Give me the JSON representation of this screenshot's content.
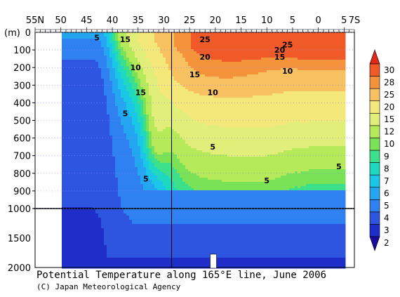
{
  "chart_data": {
    "type": "heatmap",
    "title": "Potential Temperature along 165°E line, June 2006",
    "credit": "(C) Japan Meteorological Agency",
    "ylabel": "(m)",
    "x_ticks": [
      {
        "label": "55N",
        "lat": 55
      },
      {
        "label": "50",
        "lat": 50
      },
      {
        "label": "45",
        "lat": 45
      },
      {
        "label": "40",
        "lat": 40
      },
      {
        "label": "35",
        "lat": 35
      },
      {
        "label": "30",
        "lat": 30
      },
      {
        "label": "25",
        "lat": 25
      },
      {
        "label": "20",
        "lat": 20
      },
      {
        "label": "15",
        "lat": 15
      },
      {
        "label": "10",
        "lat": 10
      },
      {
        "label": "5",
        "lat": 5
      },
      {
        "label": "0",
        "lat": 0
      },
      {
        "label": "5",
        "lat": -5
      },
      {
        "label": "7S",
        "lat": -7
      }
    ],
    "x_range": [
      55,
      -7
    ],
    "y_ticks_upper": [
      "0",
      "100",
      "200",
      "300",
      "400",
      "500",
      "600",
      "700",
      "800",
      "900",
      "1000"
    ],
    "y_ticks_lower": [
      "1500",
      "2000"
    ],
    "depth_break": 1000,
    "y_range": [
      0,
      2000
    ],
    "colorbar": {
      "labels": [
        "2",
        "3",
        "4",
        "5",
        "6",
        "7",
        "8",
        "9",
        "10",
        "12",
        "15",
        "20",
        "25",
        "28",
        "30"
      ],
      "colors": [
        "#1a0a9e",
        "#1f2ec8",
        "#2e55e0",
        "#2f80f0",
        "#25a6f0",
        "#1bc7e6",
        "#1ed8c0",
        "#3ce08a",
        "#7ae256",
        "#b6ea5a",
        "#e2ee7a",
        "#f5e87a",
        "#f7c060",
        "#f5923c",
        "#ef5a28",
        "#e02818"
      ]
    },
    "contour_labels": [
      {
        "text": "5",
        "lat": 43,
        "depth": 30
      },
      {
        "text": "15",
        "lat": 37.5,
        "depth": 40
      },
      {
        "text": "25",
        "lat": 22,
        "depth": 40
      },
      {
        "text": "20",
        "lat": 22,
        "depth": 140
      },
      {
        "text": "20",
        "lat": 7.5,
        "depth": 100
      },
      {
        "text": "25",
        "lat": 6,
        "depth": 70
      },
      {
        "text": "15",
        "lat": 7.5,
        "depth": 140
      },
      {
        "text": "10",
        "lat": 35.5,
        "depth": 200
      },
      {
        "text": "15",
        "lat": 24,
        "depth": 240
      },
      {
        "text": "10",
        "lat": 6,
        "depth": 220
      },
      {
        "text": "15",
        "lat": 34.5,
        "depth": 340
      },
      {
        "text": "10",
        "lat": 20.5,
        "depth": 340
      },
      {
        "text": "5",
        "lat": 37.5,
        "depth": 460
      },
      {
        "text": "5",
        "lat": 20.5,
        "depth": 650
      },
      {
        "text": "5",
        "lat": 33.5,
        "depth": 830
      },
      {
        "text": "5",
        "lat": 10,
        "depth": 840
      },
      {
        "text": "5",
        "lat": -4,
        "depth": 760
      }
    ]
  }
}
